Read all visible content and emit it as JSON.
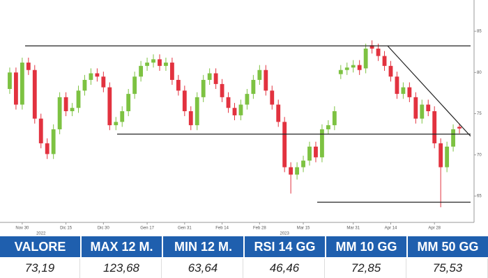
{
  "chart_data": {
    "type": "candlestick",
    "x": [
      0,
      1,
      2,
      3,
      4,
      5,
      6,
      7,
      8,
      9,
      10,
      11,
      12,
      13,
      14,
      15,
      16,
      17,
      18,
      19,
      20,
      21,
      22,
      23,
      24,
      25,
      26,
      27,
      28,
      29,
      30,
      31,
      32,
      33,
      34,
      35,
      36,
      37,
      38,
      39,
      40,
      41,
      42,
      43,
      44,
      45,
      46,
      47,
      48,
      49,
      50,
      51,
      52,
      53,
      54,
      55,
      56,
      57,
      58,
      59,
      60,
      61,
      62,
      63,
      64,
      65,
      66,
      67,
      68,
      69,
      70,
      71,
      72
    ],
    "open": [
      78,
      80,
      76.1,
      81.2,
      80.3,
      74.4,
      71.4,
      70.1,
      73.1,
      77,
      75.3,
      75.7,
      77.8,
      79.1,
      79.9,
      79.5,
      78.2,
      73.6,
      74,
      75.3,
      77.4,
      79.5,
      80.8,
      81.2,
      81.6,
      80.8,
      81.2,
      79.1,
      77.8,
      75.3,
      73.6,
      77,
      79.1,
      79.9,
      78.6,
      77,
      75.7,
      74.8,
      76.1,
      77.4,
      79.1,
      80.3,
      77.8,
      76.1,
      74,
      68.5,
      67.6,
      68.5,
      69.3,
      71,
      69.7,
      73.1,
      73.6,
      79.8,
      80.3,
      80.6,
      80.9,
      80.5,
      83.3,
      82.9,
      82,
      80.8,
      79.5,
      77.4,
      78.2,
      77,
      74.4,
      76.1,
      75.3,
      71.4,
      68.5,
      71,
      73.4
    ],
    "high": [
      80.6,
      80.6,
      81.8,
      81.8,
      80.9,
      75,
      72,
      73.7,
      77.6,
      77.6,
      76.3,
      78.4,
      79.7,
      80.5,
      80.5,
      80.1,
      78.8,
      74.6,
      75.9,
      78,
      80.1,
      81.4,
      81.8,
      82.2,
      82.2,
      81.8,
      81.8,
      79.7,
      78.4,
      75.9,
      77.6,
      79.7,
      80.5,
      80.5,
      79.2,
      77.6,
      76.3,
      76.7,
      78,
      79.7,
      80.9,
      80.9,
      78.4,
      76.7,
      74.6,
      69.1,
      69.1,
      69.9,
      71.6,
      71.6,
      73.7,
      74.2,
      75.9,
      80.9,
      81.2,
      81.5,
      81.5,
      83.5,
      83.9,
      83.5,
      82.6,
      81.4,
      80.1,
      78.8,
      78.8,
      77.6,
      76.7,
      76.7,
      75.9,
      72,
      71.6,
      73.7,
      73.8
    ],
    "low": [
      77.4,
      75.5,
      75.5,
      79.7,
      73.8,
      70.8,
      69.5,
      69.5,
      72.5,
      74.7,
      74.7,
      75.1,
      77.2,
      78.5,
      78.9,
      77.6,
      73,
      73,
      73.4,
      74.7,
      76.8,
      78.9,
      80.2,
      80.6,
      80.2,
      80.2,
      78.5,
      77.2,
      74.7,
      73,
      73,
      76.4,
      78.5,
      78,
      76.4,
      75.1,
      74.2,
      74.2,
      75.5,
      76.8,
      78.5,
      77.2,
      75.5,
      73.4,
      67.9,
      65.3,
      67,
      67.9,
      68.7,
      69.1,
      69.1,
      72.5,
      73,
      79.2,
      79.7,
      80,
      79.7,
      79.9,
      82.3,
      81.4,
      80.2,
      78.9,
      76.8,
      76.8,
      76.4,
      73.8,
      73.8,
      74.7,
      70.8,
      63.64,
      67.9,
      70.4,
      72.6
    ],
    "close": [
      80,
      76.1,
      81.2,
      80.3,
      74.4,
      71.4,
      70.1,
      73.1,
      77,
      75.3,
      75.7,
      77.8,
      79.1,
      79.9,
      79.5,
      78.2,
      73.6,
      74,
      75.3,
      77.4,
      79.5,
      80.8,
      81.2,
      81.6,
      80.8,
      81.2,
      79.1,
      77.8,
      75.3,
      73.6,
      77,
      79.1,
      79.9,
      78.6,
      77,
      75.7,
      74.8,
      76.1,
      77.4,
      79.1,
      80.3,
      77.8,
      76.1,
      74,
      68.5,
      67.6,
      68.5,
      69.3,
      71,
      69.7,
      73.1,
      73.6,
      75.3,
      80.3,
      80.6,
      80.9,
      80.3,
      82.9,
      82.9,
      82,
      80.8,
      79.5,
      77.4,
      78.2,
      77,
      74.4,
      76.1,
      75.3,
      71.4,
      68.5,
      71,
      73.1,
      73.2
    ],
    "up_color": "#7dc242",
    "down_color": "#e2323f",
    "xlim": [
      -1,
      73
    ],
    "ylim": [
      61.8,
      88.8
    ],
    "xticks": [
      {
        "value": 2,
        "label": "Nov 30"
      },
      {
        "value": 9,
        "label": "Dic 15"
      },
      {
        "value": 15,
        "label": "Dic 30"
      },
      {
        "value": 22,
        "label": "Gen 17"
      },
      {
        "value": 28,
        "label": "Gen 31"
      },
      {
        "value": 34,
        "label": "Feb 14"
      },
      {
        "value": 40,
        "label": "Feb 28"
      },
      {
        "value": 47,
        "label": "Mar 15"
      },
      {
        "value": 55,
        "label": "Mar 31"
      },
      {
        "value": 61,
        "label": "Apr 14"
      },
      {
        "value": 68,
        "label": "Apr 28"
      }
    ],
    "year_ticks": [
      {
        "value": 5,
        "label": "2022"
      },
      {
        "value": 44,
        "label": "2023"
      }
    ],
    "yticks": [
      65,
      70,
      75,
      80,
      85
    ],
    "y_axis_side": "right"
  },
  "table": {
    "headers": [
      "VALORE",
      "MAX 12 M.",
      "MIN 12 M.",
      "RSI 14 GG",
      "MM 10 GG",
      "MM 50 GG"
    ],
    "values": [
      "73,19",
      "123,68",
      "63,64",
      "46,46",
      "72,85",
      "75,53"
    ]
  }
}
